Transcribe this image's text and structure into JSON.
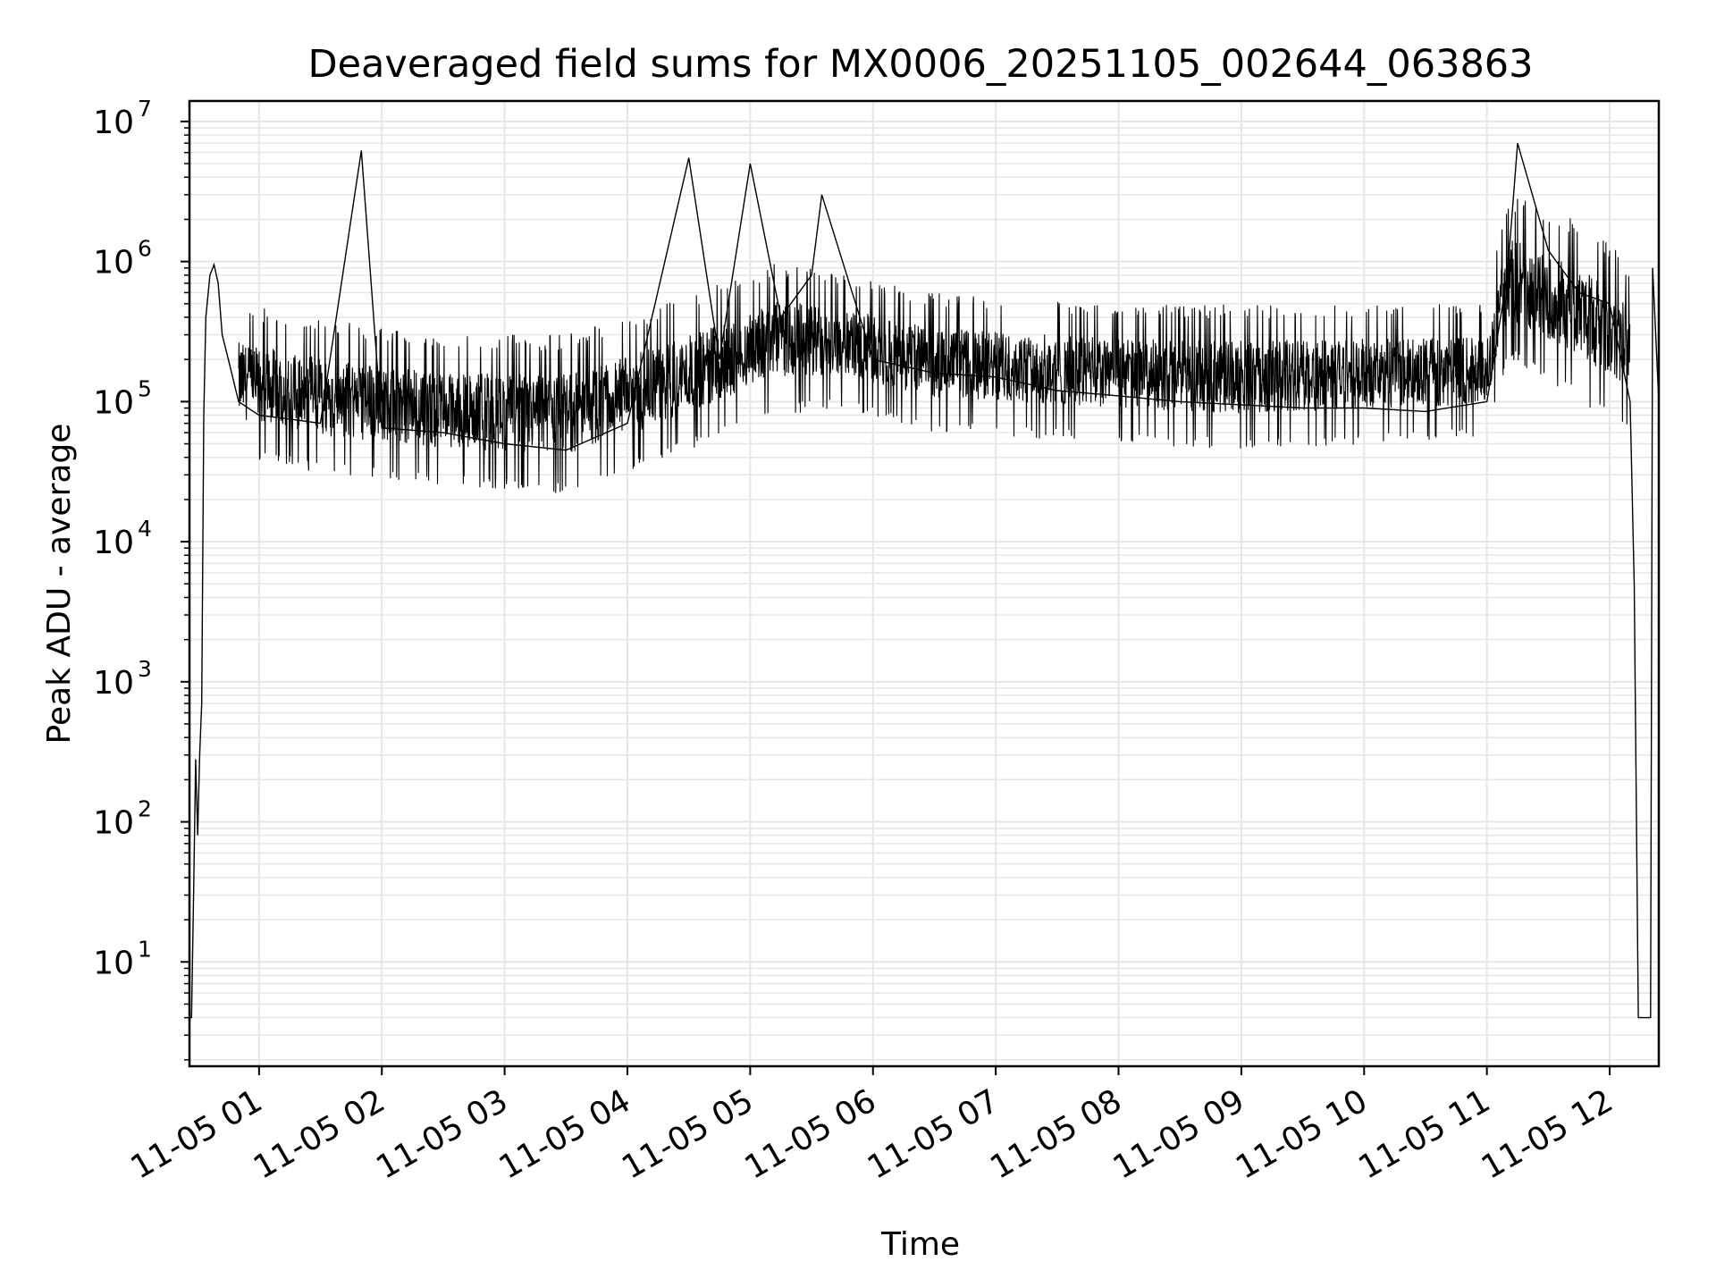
{
  "chart_data": {
    "type": "line",
    "title": "Deaveraged field sums for MX0006_20251105_002644_063863",
    "xlabel": "Time",
    "ylabel": "Peak ADU - average",
    "yscale": "log",
    "grid": true,
    "line_color": "#000000",
    "grid_color": "#e6e6e6",
    "x_range": [
      "2025-11-05 00:26",
      "2025-11-05 12:24"
    ],
    "ylim": [
      1.8,
      14000000
    ],
    "x_ticks": [
      {
        "x": "2025-11-05 01:00",
        "label": "11-05 01"
      },
      {
        "x": "2025-11-05 02:00",
        "label": "11-05 02"
      },
      {
        "x": "2025-11-05 03:00",
        "label": "11-05 03"
      },
      {
        "x": "2025-11-05 04:00",
        "label": "11-05 04"
      },
      {
        "x": "2025-11-05 05:00",
        "label": "11-05 05"
      },
      {
        "x": "2025-11-05 06:00",
        "label": "11-05 06"
      },
      {
        "x": "2025-11-05 07:00",
        "label": "11-05 07"
      },
      {
        "x": "2025-11-05 08:00",
        "label": "11-05 08"
      },
      {
        "x": "2025-11-05 09:00",
        "label": "11-05 09"
      },
      {
        "x": "2025-11-05 10:00",
        "label": "11-05 10"
      },
      {
        "x": "2025-11-05 11:00",
        "label": "11-05 11"
      },
      {
        "x": "2025-11-05 12:00",
        "label": "11-05 12"
      }
    ],
    "y_ticks": [
      {
        "y": 10,
        "base": "10",
        "exp": "1"
      },
      {
        "y": 100,
        "base": "10",
        "exp": "2"
      },
      {
        "y": 1000,
        "base": "10",
        "exp": "3"
      },
      {
        "y": 10000,
        "base": "10",
        "exp": "4"
      },
      {
        "y": 100000,
        "base": "10",
        "exp": "5"
      },
      {
        "y": 1000000,
        "base": "10",
        "exp": "6"
      },
      {
        "y": 10000000,
        "base": "10",
        "exp": "7"
      }
    ],
    "series": [
      {
        "points": [
          [
            "2025-11-05 00:26",
            4
          ],
          [
            "2025-11-05 00:27",
            4
          ],
          [
            "2025-11-05 00:28",
            30
          ],
          [
            "2025-11-05 00:29",
            280
          ],
          [
            "2025-11-05 00:30",
            80
          ],
          [
            "2025-11-05 00:31",
            300
          ],
          [
            "2025-11-05 00:32",
            700
          ],
          [
            "2025-11-05 00:33",
            80000
          ],
          [
            "2025-11-05 00:34",
            400000
          ],
          [
            "2025-11-05 00:36",
            800000
          ],
          [
            "2025-11-05 00:38",
            950000
          ],
          [
            "2025-11-05 00:40",
            700000
          ],
          [
            "2025-11-05 00:42",
            300000
          ],
          [
            "2025-11-05 00:45",
            200000
          ],
          [
            "2025-11-05 00:50",
            100000
          ],
          [
            "2025-11-05 01:00",
            80000
          ],
          [
            "2025-11-05 01:15",
            75000
          ],
          [
            "2025-11-05 01:30",
            70000
          ],
          [
            "2025-11-05 01:50",
            6200000
          ],
          [
            "2025-11-05 02:00",
            65000
          ],
          [
            "2025-11-05 02:30",
            60000
          ],
          [
            "2025-11-05 03:00",
            50000
          ],
          [
            "2025-11-05 03:30",
            45000
          ],
          [
            "2025-11-05 04:00",
            70000
          ],
          [
            "2025-11-05 04:30",
            5500000
          ],
          [
            "2025-11-05 04:45",
            200000
          ],
          [
            "2025-11-05 05:00",
            5000000
          ],
          [
            "2025-11-05 05:15",
            400000
          ],
          [
            "2025-11-05 05:30",
            800000
          ],
          [
            "2025-11-05 05:35",
            3000000
          ],
          [
            "2025-11-05 06:00",
            200000
          ],
          [
            "2025-11-05 06:30",
            160000
          ],
          [
            "2025-11-05 07:00",
            150000
          ],
          [
            "2025-11-05 07:30",
            120000
          ],
          [
            "2025-11-05 08:00",
            110000
          ],
          [
            "2025-11-05 08:30",
            100000
          ],
          [
            "2025-11-05 09:00",
            95000
          ],
          [
            "2025-11-05 09:30",
            90000
          ],
          [
            "2025-11-05 10:00",
            90000
          ],
          [
            "2025-11-05 10:30",
            85000
          ],
          [
            "2025-11-05 11:00",
            100000
          ],
          [
            "2025-11-05 11:10",
            800000
          ],
          [
            "2025-11-05 11:15",
            7000000
          ],
          [
            "2025-11-05 11:30",
            1200000
          ],
          [
            "2025-11-05 11:45",
            600000
          ],
          [
            "2025-11-05 12:00",
            500000
          ],
          [
            "2025-11-05 12:10",
            100000
          ],
          [
            "2025-11-05 12:12",
            5000
          ],
          [
            "2025-11-05 12:14",
            4
          ],
          [
            "2025-11-05 12:20",
            4
          ],
          [
            "2025-11-05 12:21",
            900000
          ],
          [
            "2025-11-05 12:24",
            100000
          ]
        ],
        "band": [
          [
            "2025-11-05 00:50",
            40000,
            500000
          ],
          [
            "2025-11-05 01:30",
            30000,
            400000
          ],
          [
            "2025-11-05 02:30",
            25000,
            300000
          ],
          [
            "2025-11-05 03:30",
            22000,
            300000
          ],
          [
            "2025-11-05 04:00",
            30000,
            400000
          ],
          [
            "2025-11-05 05:15",
            80000,
            1000000
          ],
          [
            "2025-11-05 05:45",
            90000,
            800000
          ],
          [
            "2025-11-05 06:30",
            60000,
            600000
          ],
          [
            "2025-11-05 08:00",
            50000,
            500000
          ],
          [
            "2025-11-05 09:00",
            45000,
            500000
          ],
          [
            "2025-11-05 11:00",
            55000,
            500000
          ],
          [
            "2025-11-05 11:10",
            200000,
            3000000
          ],
          [
            "2025-11-05 11:45",
            100000,
            2000000
          ],
          [
            "2025-11-05 12:10",
            60000,
            1000000
          ]
        ]
      }
    ]
  }
}
